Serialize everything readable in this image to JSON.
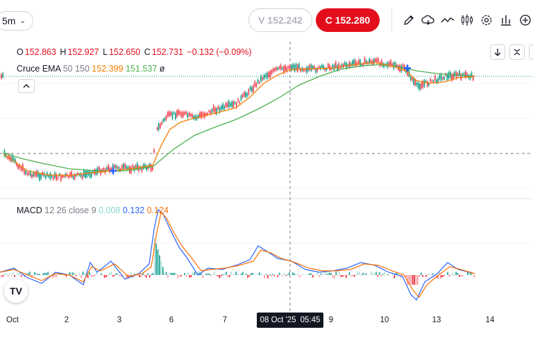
{
  "toolbar": {
    "timeframe": "5m",
    "sell_label": "V 152.242",
    "buy_label": "C 152.280",
    "tools": [
      "pencil-icon",
      "cloud-icon",
      "line-chart-icon",
      "candles-icon",
      "settings-icon",
      "bar-chart-icon",
      "add-circle-icon"
    ]
  },
  "ohlc": {
    "o_label": "O",
    "o": "152.863",
    "h_label": "H",
    "h": "152.927",
    "l_label": "L",
    "l": "152.650",
    "c_label": "C",
    "c": "152.731",
    "change": "−0.132 (−0.09%)"
  },
  "ema_indicator": {
    "name": "Cruce EMA",
    "params": "50 150",
    "value_fast": "152.399",
    "value_slow": "151.537",
    "extra": "ø"
  },
  "macd_indicator": {
    "name": "MACD",
    "params": "12 26 close 9",
    "histogram": "0.008",
    "macd": "0.132",
    "signal": "0.124"
  },
  "x_axis": {
    "labels": [
      "Oct",
      "2",
      "3",
      "6",
      "7",
      "9",
      "10",
      "13",
      "14"
    ],
    "cursor_date": "08 Oct '25",
    "cursor_time": "05:45"
  },
  "colors": {
    "up": "#089981",
    "down": "#f23645",
    "ema_fast": "#f57c00",
    "ema_slow": "#4caf50",
    "macd": "#2962ff",
    "signal": "#ff6d00",
    "buy": "#e40d1c"
  },
  "chart_data": {
    "type": "line",
    "series": [
      {
        "name": "Cruce EMA 50",
        "x": [
          "Oct",
          "2",
          "3",
          "6",
          "7",
          "8",
          "9",
          "10",
          "13"
        ],
        "values": [
          149.6,
          149.38,
          149.45,
          150.8,
          151.65,
          152.4,
          152.75,
          152.7,
          152.4
        ]
      },
      {
        "name": "Cruce EMA 150",
        "x": [
          "Oct",
          "2",
          "3",
          "6",
          "7",
          "8",
          "9",
          "10",
          "13"
        ],
        "values": [
          149.65,
          149.5,
          149.42,
          150.3,
          151.0,
          151.85,
          152.4,
          152.65,
          152.4
        ]
      },
      {
        "name": "MACD",
        "x": [
          "Oct",
          "2",
          "3",
          "6",
          "7",
          "8",
          "9",
          "10",
          "13"
        ],
        "values": [
          0.0,
          -0.04,
          0.02,
          0.44,
          0.04,
          0.05,
          0.1,
          -0.1,
          0.0
        ]
      },
      {
        "name": "Signal",
        "x": [
          "Oct",
          "2",
          "3",
          "6",
          "7",
          "8",
          "9",
          "10",
          "13"
        ],
        "values": [
          0.0,
          -0.03,
          0.01,
          0.4,
          0.05,
          0.04,
          0.09,
          -0.12,
          0.0
        ]
      }
    ]
  }
}
